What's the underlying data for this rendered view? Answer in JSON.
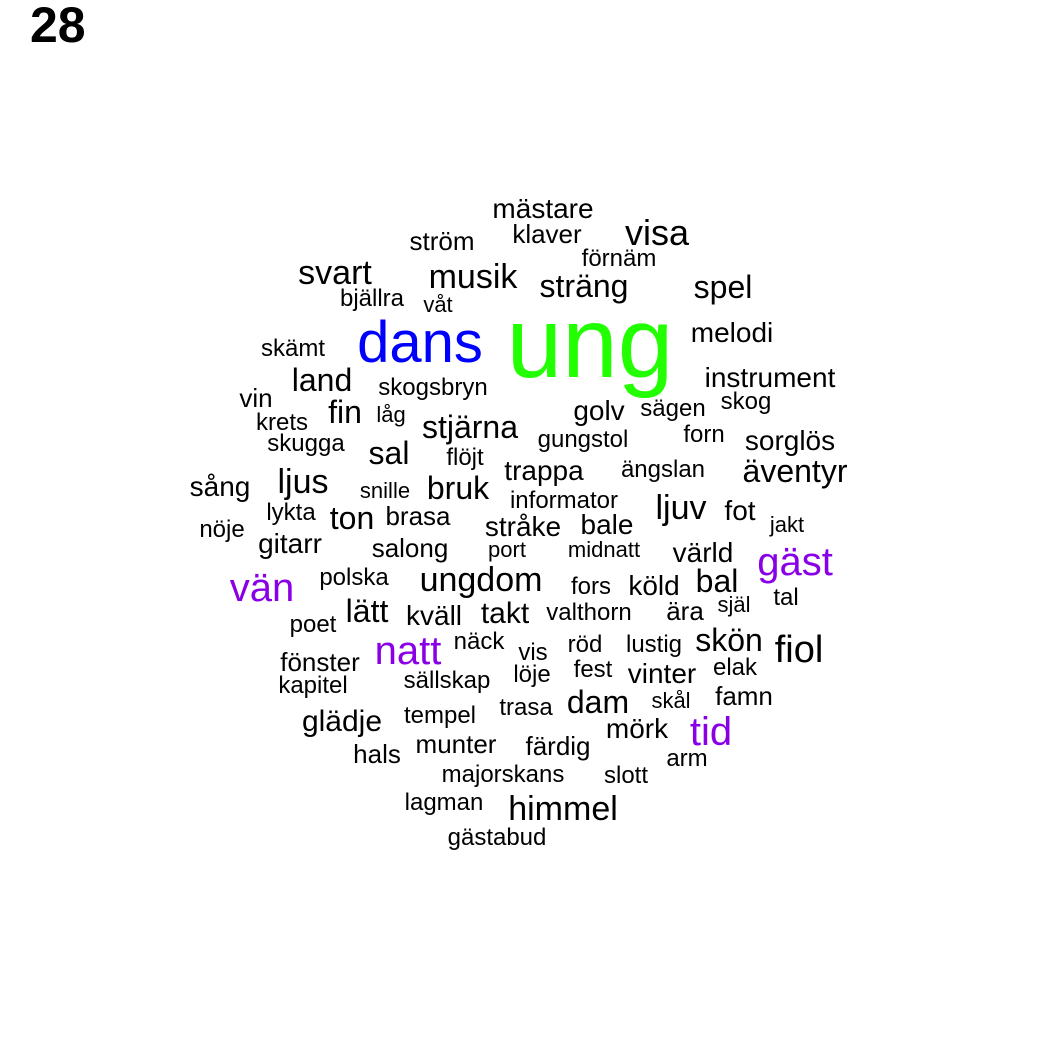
{
  "title": "28",
  "colors": {
    "default": "#000000",
    "blue": "#0000ff",
    "green": "#22ff00",
    "purple": "#8a00e6"
  },
  "words": [
    {
      "text": "ung",
      "color": "green"
    },
    {
      "text": "dans",
      "color": "blue"
    },
    {
      "text": "vän",
      "color": "purple"
    },
    {
      "text": "gäst",
      "color": "purple"
    },
    {
      "text": "natt",
      "color": "purple"
    },
    {
      "text": "tid",
      "color": "purple"
    },
    {
      "text": "mästare"
    },
    {
      "text": "klaver"
    },
    {
      "text": "visa"
    },
    {
      "text": "ström"
    },
    {
      "text": "förnäm"
    },
    {
      "text": "svart"
    },
    {
      "text": "musik"
    },
    {
      "text": "sträng"
    },
    {
      "text": "spel"
    },
    {
      "text": "bjällra"
    },
    {
      "text": "våt"
    },
    {
      "text": "skämt"
    },
    {
      "text": "melodi"
    },
    {
      "text": "land"
    },
    {
      "text": "skogsbryn"
    },
    {
      "text": "instrument"
    },
    {
      "text": "vin"
    },
    {
      "text": "fin"
    },
    {
      "text": "låg"
    },
    {
      "text": "golv"
    },
    {
      "text": "sägen"
    },
    {
      "text": "skog"
    },
    {
      "text": "krets"
    },
    {
      "text": "stjärna"
    },
    {
      "text": "forn"
    },
    {
      "text": "gungstol"
    },
    {
      "text": "sorglös"
    },
    {
      "text": "skugga"
    },
    {
      "text": "sal"
    },
    {
      "text": "flöjt"
    },
    {
      "text": "trappa"
    },
    {
      "text": "ängslan"
    },
    {
      "text": "äventyr"
    },
    {
      "text": "sång"
    },
    {
      "text": "ljus"
    },
    {
      "text": "snille"
    },
    {
      "text": "bruk"
    },
    {
      "text": "informator"
    },
    {
      "text": "lykta"
    },
    {
      "text": "ljuv"
    },
    {
      "text": "fot"
    },
    {
      "text": "ton"
    },
    {
      "text": "brasa"
    },
    {
      "text": "stråke"
    },
    {
      "text": "bale"
    },
    {
      "text": "jakt"
    },
    {
      "text": "nöje"
    },
    {
      "text": "gitarr"
    },
    {
      "text": "salong"
    },
    {
      "text": "port"
    },
    {
      "text": "midnatt"
    },
    {
      "text": "värld"
    },
    {
      "text": "polska"
    },
    {
      "text": "ungdom"
    },
    {
      "text": "fors"
    },
    {
      "text": "köld"
    },
    {
      "text": "bal"
    },
    {
      "text": "tal"
    },
    {
      "text": "lätt"
    },
    {
      "text": "kväll"
    },
    {
      "text": "takt"
    },
    {
      "text": "valthorn"
    },
    {
      "text": "ära"
    },
    {
      "text": "själ"
    },
    {
      "text": "poet"
    },
    {
      "text": "näck"
    },
    {
      "text": "röd"
    },
    {
      "text": "lustig"
    },
    {
      "text": "skön"
    },
    {
      "text": "fiol"
    },
    {
      "text": "fönster"
    },
    {
      "text": "vis"
    },
    {
      "text": "fest"
    },
    {
      "text": "vinter"
    },
    {
      "text": "elak"
    },
    {
      "text": "kapitel"
    },
    {
      "text": "sällskap"
    },
    {
      "text": "löje"
    },
    {
      "text": "dam"
    },
    {
      "text": "skål"
    },
    {
      "text": "famn"
    },
    {
      "text": "glädje"
    },
    {
      "text": "tempel"
    },
    {
      "text": "trasa"
    },
    {
      "text": "mörk"
    },
    {
      "text": "hals"
    },
    {
      "text": "munter"
    },
    {
      "text": "färdig"
    },
    {
      "text": "arm"
    },
    {
      "text": "majorskans"
    },
    {
      "text": "slott"
    },
    {
      "text": "lagman"
    },
    {
      "text": "himmel"
    },
    {
      "text": "gästabud"
    }
  ]
}
